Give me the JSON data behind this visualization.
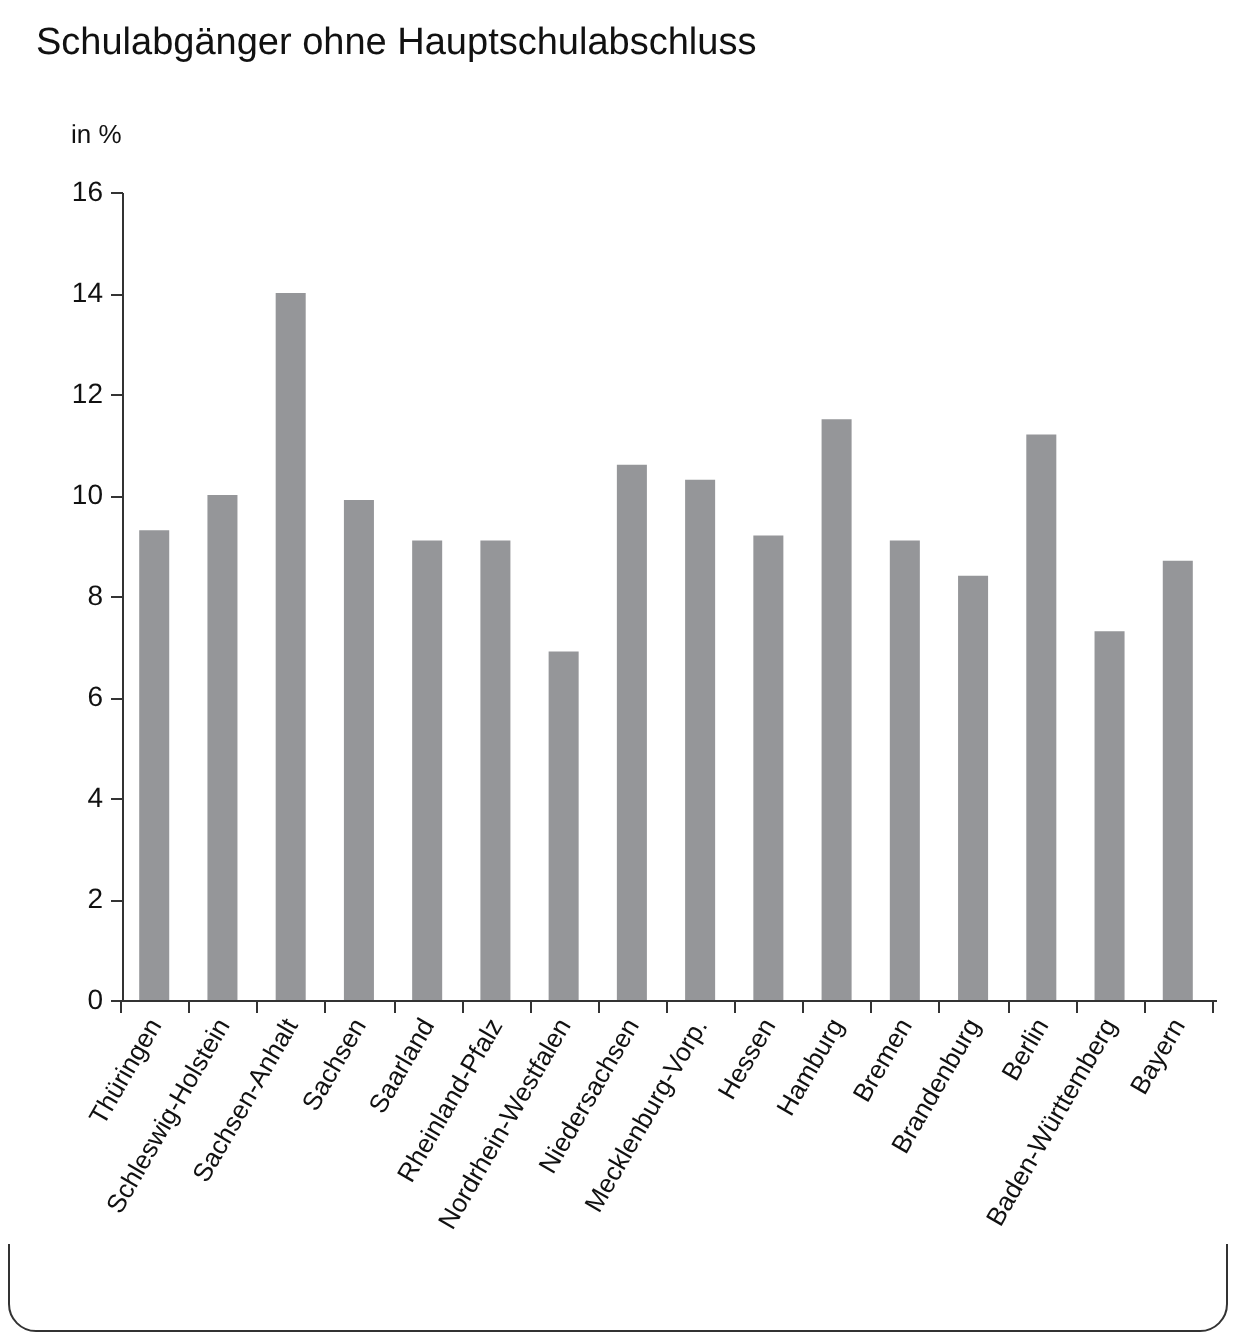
{
  "chart_data": {
    "type": "bar",
    "title": "Schulabgänger ohne Hauptschulabschluss",
    "ylabel": "in %",
    "categories": [
      "Thüringen",
      "Schleswig-Holstein",
      "Sachsen-Anhalt",
      "Sachsen",
      "Saarland",
      "Rheinland-Pfalz",
      "Nordrhein-Westfalen",
      "Niedersachsen",
      "Mecklenburg-Vorp.",
      "Hessen",
      "Hamburg",
      "Bremen",
      "Brandenburg",
      "Berlin",
      "Baden-Württemberg",
      "Bayern"
    ],
    "values": [
      9.3,
      10.0,
      14.0,
      9.9,
      9.1,
      9.1,
      6.9,
      10.6,
      10.3,
      9.2,
      11.5,
      9.1,
      8.4,
      11.2,
      7.3,
      8.7
    ],
    "color": "#959699",
    "ylim": [
      0,
      16
    ],
    "yticks": [
      0,
      2,
      4,
      6,
      8,
      10,
      12,
      14,
      16
    ],
    "grid": false
  }
}
